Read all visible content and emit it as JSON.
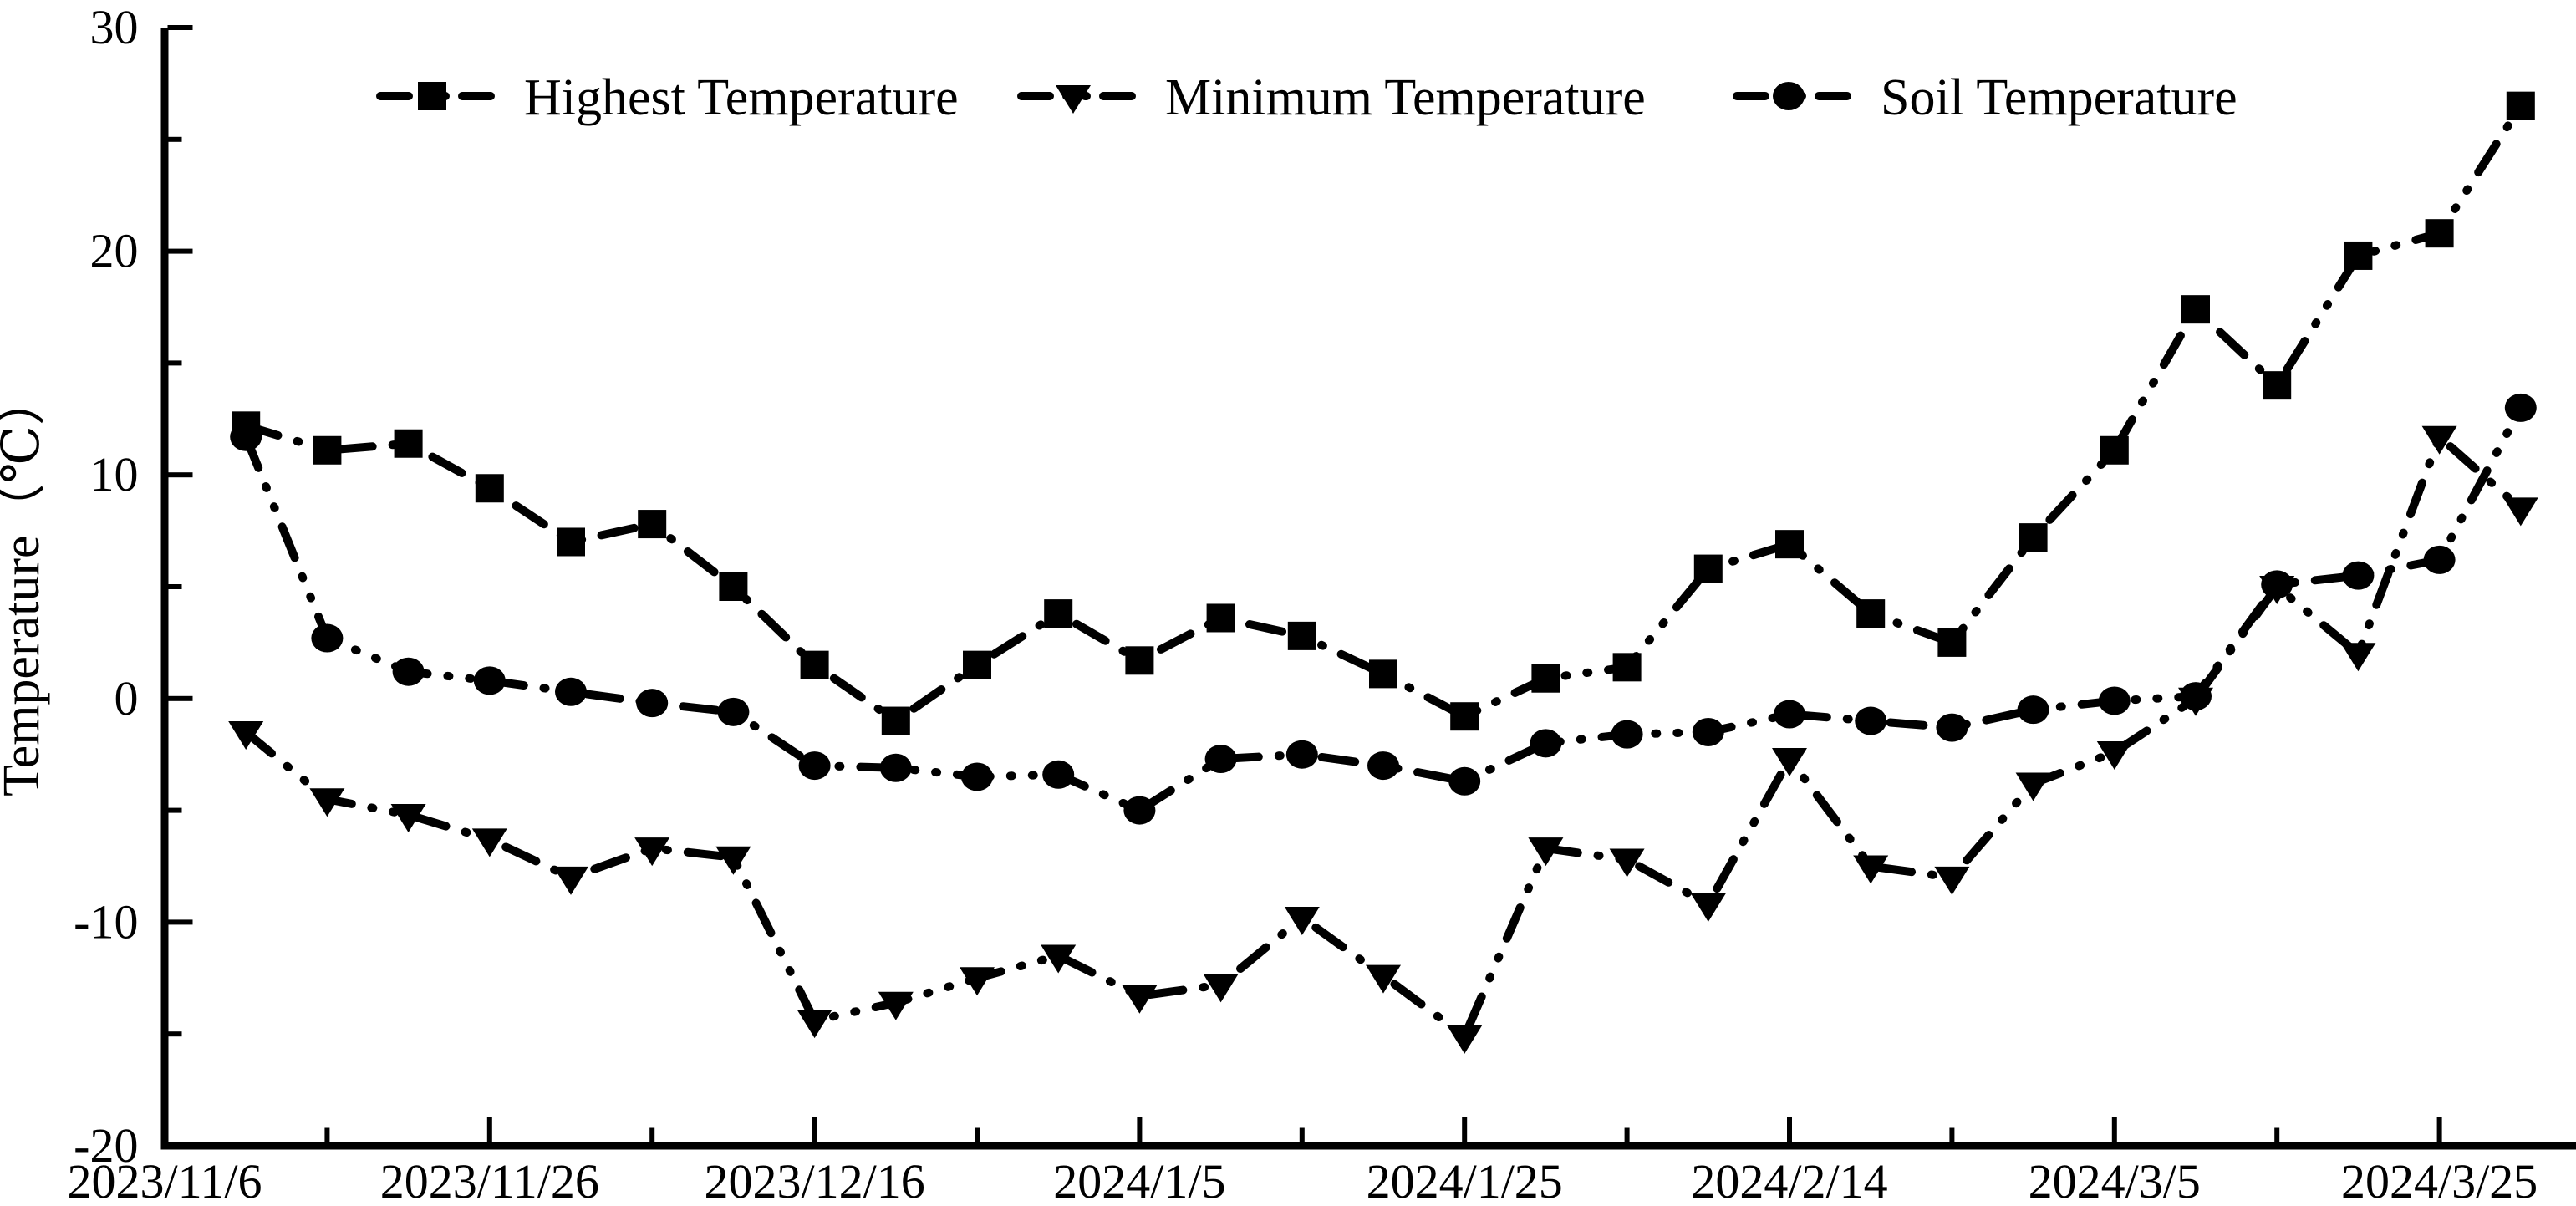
{
  "figure": {
    "background": "#ffffff",
    "ink_color": "#000000"
  },
  "chart_data": {
    "type": "line",
    "title": "",
    "xlabel": "",
    "ylabel": "Temperature（℃）",
    "ylim": [
      -20,
      30
    ],
    "y_major_tick_step": 10,
    "y_minor_tick_step": 5,
    "y_tick_labels": [
      "30",
      "20",
      "10",
      "0",
      "-10",
      "-20"
    ],
    "x_tick_labels": [
      "2023/11/6",
      "2023/11/26",
      "2023/12/16",
      "2024/1/5",
      "2024/1/25",
      "2024/2/14",
      "2024/3/5",
      "2024/3/25"
    ],
    "x_major_tick_interval_days": 20,
    "x_minor_tick_interval_days": 10,
    "grid": false,
    "legend_position": "top",
    "line_style": "dash-dot-dot",
    "line_color": "#000000",
    "categories": [
      "2023/11/11",
      "2023/11/16",
      "2023/11/21",
      "2023/11/26",
      "2023/12/1",
      "2023/12/6",
      "2023/12/11",
      "2023/12/16",
      "2023/12/21",
      "2023/12/26",
      "2023/12/31",
      "2024/1/5",
      "2024/1/10",
      "2024/1/15",
      "2024/1/20",
      "2024/1/25",
      "2024/1/30",
      "2024/2/4",
      "2024/2/9",
      "2024/2/14",
      "2024/2/19",
      "2024/2/24",
      "2024/2/29",
      "2024/3/5",
      "2024/3/10",
      "2024/3/15",
      "2024/3/20",
      "2024/3/25",
      "2024/3/30"
    ],
    "series": [
      {
        "name": "Highest Temperature",
        "marker": "square",
        "values": [
          12.2,
          11.1,
          11.4,
          9.4,
          7.0,
          7.8,
          5.0,
          1.5,
          -1.0,
          1.5,
          3.8,
          1.7,
          3.6,
          2.8,
          1.1,
          -0.8,
          0.9,
          1.4,
          5.8,
          6.9,
          3.8,
          2.5,
          7.2,
          11.1,
          17.4,
          14.0,
          19.8,
          20.8,
          26.5
        ]
      },
      {
        "name": "Minimum Temperature",
        "marker": "triangle-down",
        "values": [
          -1.5,
          -4.5,
          -5.2,
          -6.3,
          -8.0,
          -6.7,
          -7.1,
          -14.4,
          -13.6,
          -12.5,
          -11.5,
          -13.3,
          -12.8,
          -9.8,
          -12.4,
          -15.1,
          -6.7,
          -7.2,
          -9.2,
          -2.7,
          -7.5,
          -8.0,
          -3.8,
          -2.4,
          0.0,
          5.0,
          2.0,
          11.7,
          8.5
        ]
      },
      {
        "name": "Soil Temperature",
        "marker": "circle",
        "values": [
          11.7,
          2.7,
          1.2,
          0.8,
          0.3,
          -0.2,
          -0.6,
          -3.0,
          -3.1,
          -3.5,
          -3.4,
          -5.0,
          -2.7,
          -2.5,
          -3.0,
          -3.7,
          -2.0,
          -1.6,
          -1.5,
          -0.7,
          -1.0,
          -1.3,
          -0.5,
          -0.1,
          0.1,
          5.1,
          5.5,
          6.2,
          13.0
        ]
      }
    ]
  }
}
